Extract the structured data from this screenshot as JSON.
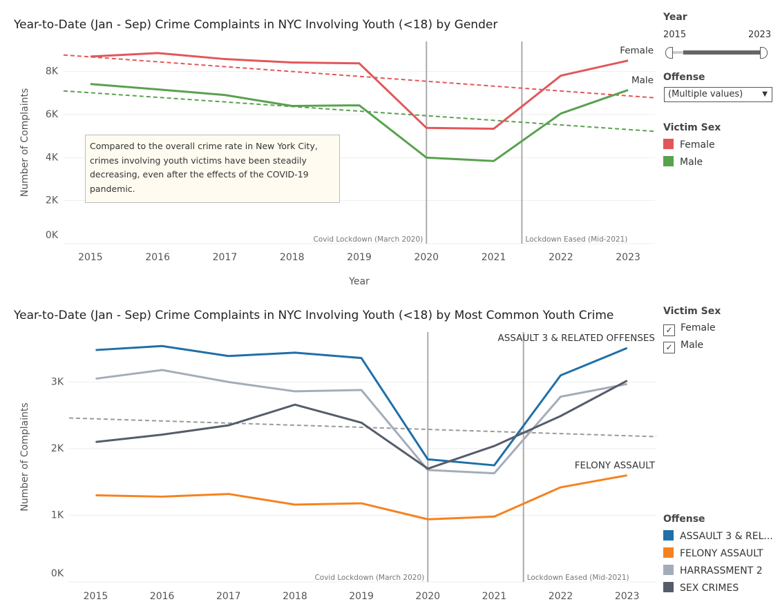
{
  "chart_data": [
    {
      "type": "line",
      "title": "Year-to-Date (Jan - Sep) Crime Complaints in NYC Involving Youth (<18) by Gender",
      "x_label": "Year",
      "y_label": "Number of Complaints",
      "x": [
        2015,
        2016,
        2017,
        2018,
        2019,
        2020,
        2021,
        2022,
        2023
      ],
      "xlim": [
        2014.6,
        2023.4
      ],
      "xticks": [
        2015,
        2016,
        2017,
        2018,
        2019,
        2020,
        2021,
        2022,
        2023
      ],
      "ylim": [
        0,
        9400
      ],
      "yticks": [
        {
          "value": 0,
          "label": "0K"
        },
        {
          "value": 2000,
          "label": "2K"
        },
        {
          "value": 4000,
          "label": "4K"
        },
        {
          "value": 6000,
          "label": "6K"
        },
        {
          "value": 8000,
          "label": "8K"
        }
      ],
      "grid": true,
      "series": [
        {
          "name": "Female",
          "color": "#e15759",
          "end_label": true,
          "values": [
            8700,
            8860,
            8580,
            8420,
            8380,
            5380,
            5340,
            7810,
            8510
          ],
          "trend": [
            8770,
            6780
          ]
        },
        {
          "name": "Male",
          "color": "#59a14f",
          "end_label": true,
          "values": [
            7420,
            7170,
            6910,
            6400,
            6430,
            4000,
            3840,
            6050,
            7140
          ],
          "trend": [
            7100,
            5220
          ]
        }
      ],
      "reference_lines": [
        {
          "x": 2020,
          "label": "Covid Lockdown (March 2020)"
        },
        {
          "x": 2021.42,
          "label": "Lockdown Eased (Mid-2021)"
        }
      ],
      "annotation": "Compared to the overall crime rate in New York City, crimes involving youth victims have been steadily decreasing, even after the effects of the COVID-19 pandemic."
    },
    {
      "type": "line",
      "title": "Year-to-Date (Jan - Sep) Crime Complaints in NYC Involving Youth (<18) by Most Common Youth Crime",
      "y_label": "Number of Complaints",
      "x": [
        2015,
        2016,
        2017,
        2018,
        2019,
        2020,
        2021,
        2022,
        2023
      ],
      "xlim": [
        2014.6,
        2023.44
      ],
      "xticks": [
        2015,
        2016,
        2017,
        2018,
        2019,
        2020,
        2021,
        2022,
        2023
      ],
      "ylim": [
        0,
        3750
      ],
      "yticks": [
        {
          "value": 0,
          "label": "0K"
        },
        {
          "value": 1000,
          "label": "1K"
        },
        {
          "value": 2000,
          "label": "2K"
        },
        {
          "value": 3000,
          "label": "3K"
        }
      ],
      "grid": true,
      "series": [
        {
          "name": "ASSAULT 3 & RELATED OFFENSES",
          "color": "#1f6fa8",
          "end_label": true,
          "values": [
            3480,
            3540,
            3390,
            3440,
            3360,
            1840,
            1750,
            3100,
            3510
          ]
        },
        {
          "name": "FELONY ASSAULT",
          "color": "#f5821f",
          "end_label": true,
          "values": [
            1300,
            1280,
            1320,
            1160,
            1180,
            940,
            980,
            1420,
            1600
          ]
        },
        {
          "name": "HARRASSMENT 2",
          "color": "#a5acb9",
          "end_label": false,
          "values": [
            3050,
            3180,
            3000,
            2860,
            2880,
            1680,
            1630,
            2780,
            2970
          ]
        },
        {
          "name": "SEX CRIMES",
          "color": "#555d6b",
          "end_label": false,
          "values": [
            2100,
            2210,
            2350,
            2660,
            2390,
            1700,
            2040,
            2490,
            3020
          ]
        }
      ],
      "trend": [
        2460,
        2180
      ],
      "trend_color": "#999999",
      "reference_lines": [
        {
          "x": 2020,
          "label": "Covid Lockdown (March 2020)"
        },
        {
          "x": 2021.44,
          "label": "Lockdown Eased (Mid-2021)"
        }
      ]
    }
  ],
  "filters": {
    "year": {
      "title": "Year",
      "min": 2015,
      "max": 2023
    },
    "offense_filter": {
      "title": "Offense",
      "value": "(Multiple values)"
    },
    "victim_sex_legend": {
      "title": "Victim Sex"
    },
    "victim_sex_filter": {
      "title": "Victim Sex",
      "items": [
        "Female",
        "Male"
      ]
    },
    "offense_legend": {
      "title": "Offense",
      "items": [
        "ASSAULT 3 & REL...",
        "FELONY ASSAULT",
        "HARRASSMENT 2",
        "SEX CRIMES"
      ]
    }
  }
}
